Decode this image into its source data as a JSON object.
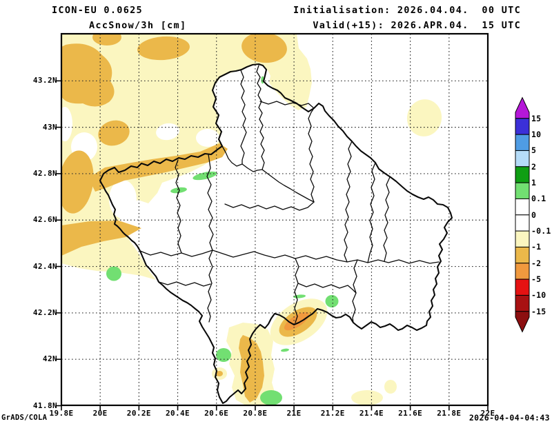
{
  "header": {
    "model": "ICON-EU 0.0625",
    "variable": "AccSnow/3h [cm]",
    "init": "Initialisation: 2026.04.04.  00 UTC",
    "valid": "Valid(+15): 2026.APR.04.  15 UTC"
  },
  "footer": {
    "credit": "GrADS/COLA",
    "generated": "2026-04-04-04:43"
  },
  "axes": {
    "lon_ticks": [
      "19.8E",
      "20E",
      "20.2E",
      "20.4E",
      "20.6E",
      "20.8E",
      "21E",
      "21.2E",
      "21.4E",
      "21.6E",
      "21.8E",
      "22E"
    ],
    "lat_ticks": [
      "43.2N",
      "43N",
      "42.8N",
      "42.6N",
      "42.4N",
      "42.2N",
      "42N",
      "41.8N"
    ]
  },
  "colorbar": {
    "labels": [
      "15",
      "10",
      "5",
      "2",
      "1",
      "0.1",
      "0",
      "-0.1",
      "-1",
      "-2",
      "-5",
      "-10",
      "-15"
    ],
    "segment_colors_top_to_bottom": [
      "#3b30d8",
      "#4f9ce4",
      "#b5dcf8",
      "#0f9e13",
      "#72df72",
      "#ffffff",
      "#ffffff",
      "#fbf6c0",
      "#ebb84a",
      "#f0993e",
      "#e51212",
      "#a81112"
    ],
    "triangle_top_color": "#b517d8",
    "triangle_bottom_color": "#8c0f10"
  },
  "palette": {
    "cream": "#fbf6c0",
    "mustard": "#ebb84a",
    "orange": "#f0993e",
    "green": "#72df72",
    "white": "#ffffff",
    "border": "#000000"
  },
  "map": {
    "region_extent": {
      "lon_min": "19.8E",
      "lon_max": "22E",
      "lat_min": "41.8N",
      "lat_max": "43.2N"
    }
  }
}
